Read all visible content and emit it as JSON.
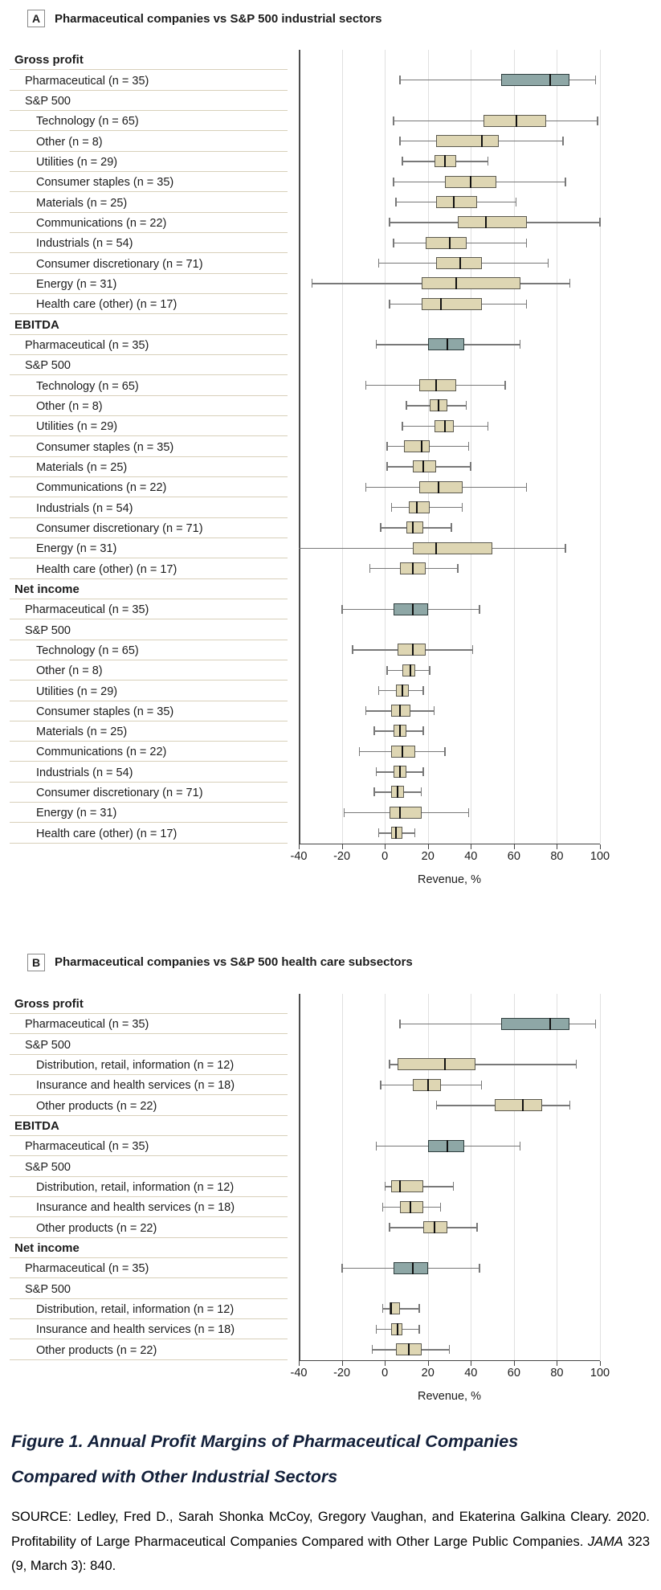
{
  "colors": {
    "pharma_fill": "#8ea7a6",
    "pharma_border": "#2f3e3e",
    "sector_fill": "#ded6b3",
    "sector_border": "#5c5a50",
    "median": "#111111",
    "whisker": "#787878",
    "gridline": "#e0e0e0",
    "axis_line": "#4d4d4d",
    "label_rule": "#d8d0ba"
  },
  "caption": {
    "title_lines": [
      "Figure 1.  Annual Profit Margins of Pharmaceutical Companies",
      "Compared with Other Industrial Sectors"
    ],
    "source_prefix": "SOURCE: Ledley, Fred D., Sarah Shonka McCoy, Gregory Vaughan, and Ekaterina Galkina Cleary. 2020. Profitability of Large Pharmaceutical Companies Compared with Other Large Public Companies. ",
    "source_journal": "JAMA",
    "source_suffix": " 323 (9, March 3): 840."
  },
  "chart_data": [
    {
      "type": "boxplot",
      "panel": "A",
      "title": "Pharmaceutical companies vs S&P 500 industrial sectors",
      "xlabel": "Revenue, %",
      "xlim": [
        -40,
        100
      ],
      "xticks": [
        -40,
        -20,
        0,
        20,
        40,
        60,
        80,
        100
      ],
      "grid": true,
      "orientation": "horizontal",
      "rows": [
        {
          "kind": "section",
          "label": "Gross profit"
        },
        {
          "kind": "box",
          "label": "Pharmaceutical (n = 35)",
          "indent": 1,
          "series": "pharmaceutical",
          "whisker_low": 7,
          "q1": 54,
          "median": 77,
          "q3": 86,
          "whisker_high": 98
        },
        {
          "kind": "group",
          "label": "S&P 500",
          "indent": 1
        },
        {
          "kind": "box",
          "label": "Technology (n = 65)",
          "indent": 2,
          "series": "sp500",
          "whisker_low": 4,
          "q1": 46,
          "median": 61,
          "q3": 75,
          "whisker_high": 99
        },
        {
          "kind": "box",
          "label": "Other (n = 8)",
          "indent": 2,
          "series": "sp500",
          "whisker_low": 7,
          "q1": 24,
          "median": 45,
          "q3": 53,
          "whisker_high": 83
        },
        {
          "kind": "box",
          "label": "Utilities (n = 29)",
          "indent": 2,
          "series": "sp500",
          "whisker_low": 8,
          "q1": 23,
          "median": 28,
          "q3": 33,
          "whisker_high": 48
        },
        {
          "kind": "box",
          "label": "Consumer staples (n = 35)",
          "indent": 2,
          "series": "sp500",
          "whisker_low": 4,
          "q1": 28,
          "median": 40,
          "q3": 52,
          "whisker_high": 84
        },
        {
          "kind": "box",
          "label": "Materials (n = 25)",
          "indent": 2,
          "series": "sp500",
          "whisker_low": 5,
          "q1": 24,
          "median": 32,
          "q3": 43,
          "whisker_high": 61
        },
        {
          "kind": "box",
          "label": "Communications (n = 22)",
          "indent": 2,
          "series": "sp500",
          "whisker_low": 2,
          "q1": 34,
          "median": 47,
          "q3": 66,
          "whisker_high": 100
        },
        {
          "kind": "box",
          "label": "Industrials (n = 54)",
          "indent": 2,
          "series": "sp500",
          "whisker_low": 4,
          "q1": 19,
          "median": 30,
          "q3": 38,
          "whisker_high": 66
        },
        {
          "kind": "box",
          "label": "Consumer discretionary (n = 71)",
          "indent": 2,
          "series": "sp500",
          "whisker_low": -3,
          "q1": 24,
          "median": 35,
          "q3": 45,
          "whisker_high": 76
        },
        {
          "kind": "box",
          "label": "Energy (n = 31)",
          "indent": 2,
          "series": "sp500",
          "whisker_low": -34,
          "q1": 17,
          "median": 33,
          "q3": 63,
          "whisker_high": 86
        },
        {
          "kind": "box",
          "label": "Health care (other) (n = 17)",
          "indent": 2,
          "series": "sp500",
          "whisker_low": 2,
          "q1": 17,
          "median": 26,
          "q3": 45,
          "whisker_high": 66
        },
        {
          "kind": "section",
          "label": "EBITDA"
        },
        {
          "kind": "box",
          "label": "Pharmaceutical (n = 35)",
          "indent": 1,
          "series": "pharmaceutical",
          "whisker_low": -4,
          "q1": 20,
          "median": 29,
          "q3": 37,
          "whisker_high": 63
        },
        {
          "kind": "group",
          "label": "S&P 500",
          "indent": 1
        },
        {
          "kind": "box",
          "label": "Technology (n = 65)",
          "indent": 2,
          "series": "sp500",
          "whisker_low": -9,
          "q1": 16,
          "median": 24,
          "q3": 33,
          "whisker_high": 56
        },
        {
          "kind": "box",
          "label": "Other (n = 8)",
          "indent": 2,
          "series": "sp500",
          "whisker_low": 10,
          "q1": 21,
          "median": 25,
          "q3": 29,
          "whisker_high": 38
        },
        {
          "kind": "box",
          "label": "Utilities (n = 29)",
          "indent": 2,
          "series": "sp500",
          "whisker_low": 8,
          "q1": 23,
          "median": 28,
          "q3": 32,
          "whisker_high": 48
        },
        {
          "kind": "box",
          "label": "Consumer staples (n = 35)",
          "indent": 2,
          "series": "sp500",
          "whisker_low": 1,
          "q1": 9,
          "median": 17,
          "q3": 21,
          "whisker_high": 39
        },
        {
          "kind": "box",
          "label": "Materials (n = 25)",
          "indent": 2,
          "series": "sp500",
          "whisker_low": 1,
          "q1": 13,
          "median": 18,
          "q3": 24,
          "whisker_high": 40
        },
        {
          "kind": "box",
          "label": "Communications (n = 22)",
          "indent": 2,
          "series": "sp500",
          "whisker_low": -9,
          "q1": 16,
          "median": 25,
          "q3": 36,
          "whisker_high": 66
        },
        {
          "kind": "box",
          "label": "Industrials (n = 54)",
          "indent": 2,
          "series": "sp500",
          "whisker_low": 3,
          "q1": 11,
          "median": 15,
          "q3": 21,
          "whisker_high": 36
        },
        {
          "kind": "box",
          "label": "Consumer discretionary (n = 71)",
          "indent": 2,
          "series": "sp500",
          "whisker_low": -2,
          "q1": 10,
          "median": 13,
          "q3": 18,
          "whisker_high": 31
        },
        {
          "kind": "box",
          "label": "Energy (n = 31)",
          "indent": 2,
          "series": "sp500",
          "whisker_low": -40,
          "min_clipped": true,
          "q1": 13,
          "median": 24,
          "q3": 50,
          "whisker_high": 84
        },
        {
          "kind": "box",
          "label": "Health care (other) (n = 17)",
          "indent": 2,
          "series": "sp500",
          "whisker_low": -7,
          "q1": 7,
          "median": 13,
          "q3": 19,
          "whisker_high": 34
        },
        {
          "kind": "section",
          "label": "Net income"
        },
        {
          "kind": "box",
          "label": "Pharmaceutical (n = 35)",
          "indent": 1,
          "series": "pharmaceutical",
          "whisker_low": -20,
          "q1": 4,
          "median": 13,
          "q3": 20,
          "whisker_high": 44
        },
        {
          "kind": "group",
          "label": "S&P 500",
          "indent": 1
        },
        {
          "kind": "box",
          "label": "Technology (n = 65)",
          "indent": 2,
          "series": "sp500",
          "whisker_low": -15,
          "q1": 6,
          "median": 13,
          "q3": 19,
          "whisker_high": 41
        },
        {
          "kind": "box",
          "label": "Other (n = 8)",
          "indent": 2,
          "series": "sp500",
          "whisker_low": 1,
          "q1": 8,
          "median": 12,
          "q3": 14,
          "whisker_high": 21
        },
        {
          "kind": "box",
          "label": "Utilities (n = 29)",
          "indent": 2,
          "series": "sp500",
          "whisker_low": -3,
          "q1": 5,
          "median": 8,
          "q3": 11,
          "whisker_high": 18
        },
        {
          "kind": "box",
          "label": "Consumer staples (n = 35)",
          "indent": 2,
          "series": "sp500",
          "whisker_low": -9,
          "q1": 3,
          "median": 7,
          "q3": 12,
          "whisker_high": 23
        },
        {
          "kind": "box",
          "label": "Materials (n = 25)",
          "indent": 2,
          "series": "sp500",
          "whisker_low": -5,
          "q1": 4,
          "median": 7,
          "q3": 10,
          "whisker_high": 18
        },
        {
          "kind": "box",
          "label": "Communications (n = 22)",
          "indent": 2,
          "series": "sp500",
          "whisker_low": -12,
          "q1": 3,
          "median": 8,
          "q3": 14,
          "whisker_high": 28
        },
        {
          "kind": "box",
          "label": "Industrials (n = 54)",
          "indent": 2,
          "series": "sp500",
          "whisker_low": -4,
          "q1": 4,
          "median": 7,
          "q3": 10,
          "whisker_high": 18
        },
        {
          "kind": "box",
          "label": "Consumer discretionary (n = 71)",
          "indent": 2,
          "series": "sp500",
          "whisker_low": -5,
          "q1": 3,
          "median": 6,
          "q3": 9,
          "whisker_high": 17
        },
        {
          "kind": "box",
          "label": "Energy (n = 31)",
          "indent": 2,
          "series": "sp500",
          "whisker_low": -19,
          "q1": 2,
          "median": 7,
          "q3": 17,
          "whisker_high": 39
        },
        {
          "kind": "box",
          "label": "Health care (other) (n = 17)",
          "indent": 2,
          "series": "sp500",
          "whisker_low": -3,
          "q1": 3,
          "median": 5,
          "q3": 8,
          "whisker_high": 14
        }
      ]
    },
    {
      "type": "boxplot",
      "panel": "B",
      "title": "Pharmaceutical companies vs S&P 500 health care subsectors",
      "xlabel": "Revenue, %",
      "xlim": [
        -40,
        100
      ],
      "xticks": [
        -40,
        -20,
        0,
        20,
        40,
        60,
        80,
        100
      ],
      "grid": true,
      "orientation": "horizontal",
      "rows": [
        {
          "kind": "section",
          "label": "Gross profit"
        },
        {
          "kind": "box",
          "label": "Pharmaceutical (n = 35)",
          "indent": 1,
          "series": "pharmaceutical",
          "whisker_low": 7,
          "q1": 54,
          "median": 77,
          "q3": 86,
          "whisker_high": 98
        },
        {
          "kind": "group",
          "label": "S&P 500",
          "indent": 1
        },
        {
          "kind": "box",
          "label": "Distribution, retail, information (n = 12)",
          "indent": 2,
          "series": "sp500",
          "whisker_low": 2,
          "q1": 6,
          "median": 28,
          "q3": 42,
          "whisker_high": 89
        },
        {
          "kind": "box",
          "label": "Insurance and health services (n = 18)",
          "indent": 2,
          "series": "sp500",
          "whisker_low": -2,
          "q1": 13,
          "median": 20,
          "q3": 26,
          "whisker_high": 45
        },
        {
          "kind": "box",
          "label": "Other products (n = 22)",
          "indent": 2,
          "series": "sp500",
          "whisker_low": 24,
          "q1": 51,
          "median": 64,
          "q3": 73,
          "whisker_high": 86
        },
        {
          "kind": "section",
          "label": "EBITDA"
        },
        {
          "kind": "box",
          "label": "Pharmaceutical (n = 35)",
          "indent": 1,
          "series": "pharmaceutical",
          "whisker_low": -4,
          "q1": 20,
          "median": 29,
          "q3": 37,
          "whisker_high": 63
        },
        {
          "kind": "group",
          "label": "S&P 500",
          "indent": 1
        },
        {
          "kind": "box",
          "label": "Distribution, retail, information (n = 12)",
          "indent": 2,
          "series": "sp500",
          "whisker_low": 0,
          "q1": 3,
          "median": 7,
          "q3": 18,
          "whisker_high": 32
        },
        {
          "kind": "box",
          "label": "Insurance and health services (n = 18)",
          "indent": 2,
          "series": "sp500",
          "whisker_low": -1,
          "q1": 7,
          "median": 12,
          "q3": 18,
          "whisker_high": 26
        },
        {
          "kind": "box",
          "label": "Other products (n = 22)",
          "indent": 2,
          "series": "sp500",
          "whisker_low": 2,
          "q1": 18,
          "median": 23,
          "q3": 29,
          "whisker_high": 43
        },
        {
          "kind": "section",
          "label": "Net income"
        },
        {
          "kind": "box",
          "label": "Pharmaceutical (n = 35)",
          "indent": 1,
          "series": "pharmaceutical",
          "whisker_low": -20,
          "q1": 4,
          "median": 13,
          "q3": 20,
          "whisker_high": 44
        },
        {
          "kind": "group",
          "label": "S&P 500",
          "indent": 1
        },
        {
          "kind": "box",
          "label": "Distribution, retail, information (n = 12)",
          "indent": 2,
          "series": "sp500",
          "whisker_low": -1,
          "q1": 2,
          "median": 3,
          "q3": 7,
          "whisker_high": 16
        },
        {
          "kind": "box",
          "label": "Insurance and health services (n = 18)",
          "indent": 2,
          "series": "sp500",
          "whisker_low": -4,
          "q1": 3,
          "median": 6,
          "q3": 8,
          "whisker_high": 16
        },
        {
          "kind": "box",
          "label": "Other products (n = 22)",
          "indent": 2,
          "series": "sp500",
          "whisker_low": -6,
          "q1": 5,
          "median": 11,
          "q3": 17,
          "whisker_high": 30
        }
      ]
    }
  ]
}
